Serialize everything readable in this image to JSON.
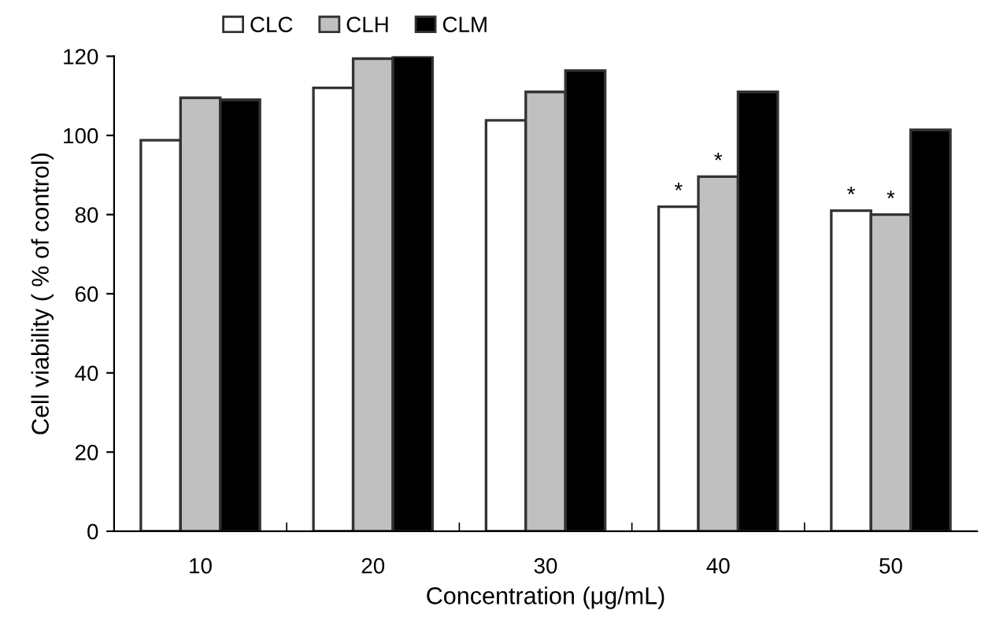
{
  "chart_data": {
    "type": "bar",
    "xlabel": "Concentration (μg/mL)",
    "ylabel": "Cell viability ( % of control)",
    "categories": [
      "10",
      "20",
      "30",
      "40",
      "50"
    ],
    "series": [
      {
        "name": "CLC",
        "color": "#ffffff",
        "values": [
          98.8,
          112,
          103.8,
          82,
          81
        ],
        "value_labels": [
          null,
          null,
          null,
          "*",
          "*"
        ]
      },
      {
        "name": "CLH",
        "color": "#c0c0c0",
        "values": [
          109.5,
          119.4,
          111,
          89.6,
          80
        ],
        "value_labels": [
          null,
          null,
          null,
          "*",
          "*"
        ]
      },
      {
        "name": "CLM",
        "color": "#000000",
        "values": [
          109,
          120,
          116.4,
          111,
          101.4
        ]
      }
    ],
    "ylim": [
      0,
      120
    ],
    "yticks": [
      0,
      20,
      40,
      60,
      80,
      100,
      120
    ],
    "grid": false,
    "legend": "top"
  }
}
